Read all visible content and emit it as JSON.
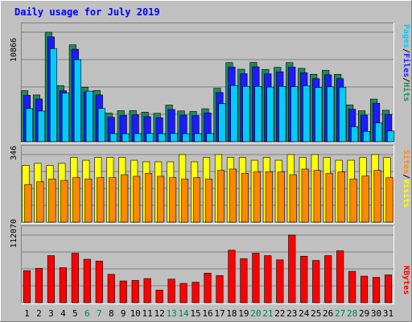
{
  "chart_data": {
    "type": "bar",
    "title": "Daily usage for July 2019",
    "days": [
      "1",
      "2",
      "3",
      "4",
      "5",
      "6",
      "7",
      "8",
      "9",
      "10",
      "11",
      "12",
      "13",
      "14",
      "15",
      "16",
      "17",
      "18",
      "19",
      "20",
      "21",
      "22",
      "23",
      "24",
      "25",
      "26",
      "27",
      "28",
      "29",
      "30",
      "31"
    ],
    "weekend_days": [
      "6",
      "7",
      "13",
      "14",
      "20",
      "21",
      "27",
      "28"
    ],
    "panels": [
      {
        "name": "top",
        "ymax": 10866,
        "ymax_label": "10866",
        "right_label": [
          "Pages",
          "/",
          "Files",
          "/",
          "Hits"
        ],
        "series": [
          {
            "name": "Hits",
            "color": "#1f8a5e",
            "values": [
              5070,
              4640,
              10866,
              5560,
              9620,
              5400,
              5080,
              2840,
              3080,
              3090,
              2930,
              2820,
              3640,
              3050,
              3000,
              3270,
              5300,
              7850,
              7190,
              7870,
              7170,
              7380,
              7850,
              7280,
              6690,
              7090,
              6690,
              3650,
              3070,
              4230,
              3120
            ]
          },
          {
            "name": "Files",
            "color": "#1c1cff",
            "values": [
              4610,
              4240,
              10400,
              5050,
              9180,
              4960,
              4640,
              2420,
              2620,
              2660,
              2490,
              2380,
              3200,
              2640,
              2590,
              2860,
              4880,
              7410,
              6750,
              7430,
              6730,
              6940,
              7410,
              6840,
              6260,
              6640,
              6260,
              3230,
              2640,
              3820,
              2700
            ]
          },
          {
            "name": "Pages",
            "color": "#00ccff",
            "values": [
              3290,
              3040,
              9240,
              4820,
              8140,
              5020,
              3300,
              800,
              790,
              800,
              810,
              800,
              810,
              790,
              800,
              810,
              3780,
              5570,
              5490,
              5490,
              5420,
              5490,
              5460,
              5540,
              5380,
              5450,
              5400,
              1480,
              1020,
              1860,
              1060
            ]
          }
        ]
      },
      {
        "name": "mid",
        "ymax": 346,
        "ymax_label": "346",
        "right_label": [
          "Sites",
          "/",
          "Visits"
        ],
        "series": [
          {
            "name": "Visits",
            "color": "#ffff00",
            "values": [
              290,
              301,
              290,
              301,
              331,
              317,
              331,
              331,
              331,
              317,
              309,
              309,
              309,
              346,
              309,
              331,
              346,
              331,
              331,
              317,
              331,
              317,
              346,
              331,
              346,
              331,
              317,
              317,
              331,
              346,
              331
            ]
          },
          {
            "name": "Sites",
            "color": "#ff8800",
            "values": [
              193,
              207,
              221,
              214,
              228,
              221,
              228,
              228,
              243,
              235,
              250,
              235,
              228,
              221,
              228,
              221,
              265,
              272,
              250,
              257,
              258,
              257,
              243,
              272,
              265,
              250,
              257,
              221,
              236,
              265,
              228
            ]
          }
        ]
      },
      {
        "name": "bottom",
        "ymax": 112070,
        "ymax_label": "112070",
        "right_label": [
          "KBytes"
        ],
        "series": [
          {
            "name": "KBytes",
            "color": "#ff0000",
            "values": [
              53000,
              57000,
              78000,
              58000,
              82000,
              72000,
              69000,
              47000,
              36000,
              37000,
              40000,
              21000,
              39000,
              32000,
              34000,
              49000,
              45000,
              87000,
              73000,
              82000,
              78000,
              71000,
              112070,
              77000,
              70000,
              78000,
              86000,
              52000,
              44000,
              42000,
              46000
            ]
          }
        ]
      }
    ]
  }
}
